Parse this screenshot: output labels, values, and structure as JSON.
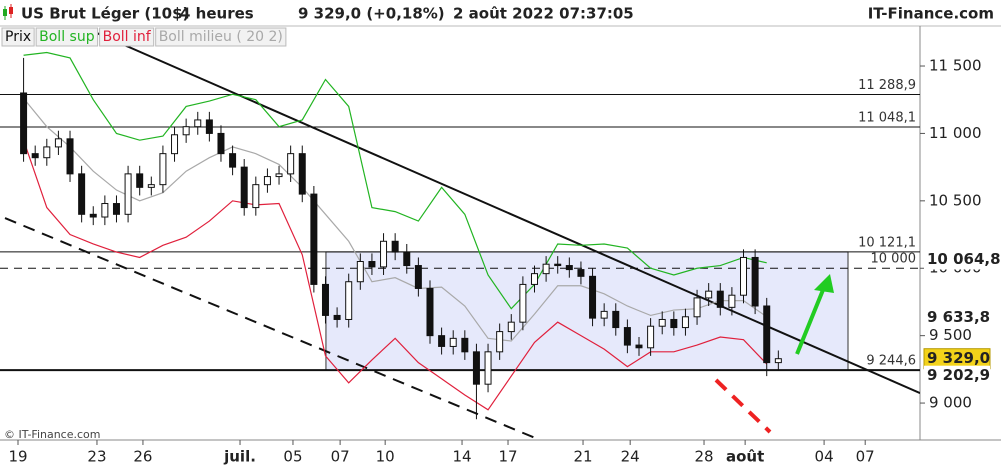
{
  "chart_data": {
    "type": "candlestick",
    "title": "US Brut Léger (10$)",
    "timeframe": "4 heures",
    "last_price": "9 329,0 (+0,18%)",
    "datetime": "2 août 2022 07:37:05",
    "brand": "IT-Finance.com",
    "footer": "© IT-Finance.com",
    "xlim": [
      -0.8,
      38.6
    ],
    "ylim": [
      8726,
      11782
    ],
    "xticks": [
      {
        "value": -0.24,
        "label": "19"
      },
      {
        "value": 3.16,
        "label": "23"
      },
      {
        "value": 5.14,
        "label": "26"
      },
      {
        "value": 9.32,
        "label": "juil."
      },
      {
        "value": 11.6,
        "label": "05"
      },
      {
        "value": 13.63,
        "label": "07"
      },
      {
        "value": 15.57,
        "label": "10"
      },
      {
        "value": 18.88,
        "label": "14"
      },
      {
        "value": 20.86,
        "label": "17"
      },
      {
        "value": 24.09,
        "label": "21"
      },
      {
        "value": 26.12,
        "label": "24"
      },
      {
        "value": 29.3,
        "label": "28"
      },
      {
        "value": 31.07,
        "label": "août"
      },
      {
        "value": 34.47,
        "label": "04"
      },
      {
        "value": 36.24,
        "label": "07"
      }
    ],
    "yticks": [
      {
        "value": 9000,
        "label": "9 000"
      },
      {
        "value": 9500,
        "label": "9 500"
      },
      {
        "value": 10000,
        "label": "10 000"
      },
      {
        "value": 10500,
        "label": "10 500"
      },
      {
        "value": 11000,
        "label": "11 000"
      },
      {
        "value": 11500,
        "label": "11 500"
      }
    ],
    "candles": {
      "name": "Prix",
      "x": [
        0,
        0.5,
        1,
        1.5,
        2,
        2.5,
        3,
        3.5,
        4,
        4.5,
        5,
        5.5,
        6,
        6.5,
        7,
        7.5,
        8,
        8.5,
        9,
        9.5,
        10,
        10.5,
        11,
        11.5,
        12,
        12.5,
        13,
        13.5,
        14,
        14.5,
        15,
        15.5,
        16,
        16.5,
        17,
        17.5,
        18,
        18.5,
        19,
        19.5,
        20,
        20.5,
        21,
        21.5,
        22,
        22.5,
        23,
        23.5,
        24,
        24.5,
        25,
        25.5,
        26,
        26.5,
        27,
        27.5,
        28,
        28.5,
        29,
        29.5,
        30,
        30.5,
        31,
        31.5,
        32,
        32.5
      ],
      "open": [
        11300,
        10850,
        10820,
        10900,
        10960,
        10700,
        10400,
        10380,
        10480,
        10400,
        10700,
        10600,
        10620,
        10850,
        10990,
        11050,
        11100,
        11000,
        10850,
        10750,
        10450,
        10620,
        10680,
        10700,
        10850,
        10550,
        9880,
        9650,
        9620,
        9900,
        10050,
        10010,
        10200,
        10120,
        10020,
        9850,
        9500,
        9420,
        9480,
        9380,
        9140,
        9380,
        9530,
        9600,
        9880,
        9960,
        10030,
        10020,
        9990,
        9940,
        9630,
        9680,
        9560,
        9430,
        9410,
        9570,
        9620,
        9560,
        9640,
        9780,
        9830,
        9710,
        9800,
        10080,
        9720,
        9300
      ],
      "high": [
        11560,
        10910,
        10960,
        11020,
        11020,
        10760,
        10460,
        10540,
        10540,
        10760,
        10760,
        10680,
        10910,
        11050,
        11110,
        11160,
        11160,
        11060,
        10910,
        10810,
        10680,
        10740,
        10760,
        10910,
        10910,
        10610,
        9940,
        9710,
        9960,
        10110,
        10110,
        10260,
        10260,
        10180,
        10080,
        9910,
        9560,
        9540,
        9540,
        9440,
        9440,
        9590,
        9660,
        9940,
        10020,
        10090,
        10090,
        10080,
        10050,
        10000,
        9740,
        9740,
        9620,
        9490,
        9630,
        9680,
        9680,
        9700,
        9840,
        9890,
        9890,
        9860,
        10140,
        10140,
        9780,
        9390
      ],
      "low": [
        10790,
        10760,
        10760,
        10840,
        10640,
        10340,
        10320,
        10320,
        10340,
        10340,
        10540,
        10540,
        10560,
        10790,
        10930,
        10990,
        10940,
        10790,
        10690,
        10390,
        10390,
        10560,
        10620,
        10640,
        10490,
        9820,
        9590,
        9560,
        9560,
        9840,
        9950,
        9950,
        10060,
        9960,
        9790,
        9440,
        9360,
        9360,
        9320,
        8880,
        9080,
        9320,
        9470,
        9540,
        9820,
        9900,
        9960,
        9930,
        9880,
        9570,
        9570,
        9500,
        9370,
        9350,
        9350,
        9510,
        9500,
        9500,
        9580,
        9720,
        9650,
        9650,
        9740,
        9660,
        9200,
        9240
      ],
      "close": [
        10850,
        10820,
        10900,
        10960,
        10700,
        10400,
        10380,
        10480,
        10400,
        10700,
        10600,
        10620,
        10850,
        10990,
        11050,
        11100,
        11000,
        10850,
        10750,
        10450,
        10620,
        10680,
        10700,
        10850,
        10550,
        9880,
        9650,
        9620,
        9900,
        10050,
        10010,
        10200,
        10120,
        10020,
        9850,
        9500,
        9420,
        9480,
        9380,
        9140,
        9380,
        9530,
        9600,
        9880,
        9960,
        10030,
        10020,
        9990,
        9940,
        9630,
        9680,
        9560,
        9430,
        9410,
        9570,
        9620,
        9560,
        9640,
        9780,
        9830,
        9710,
        9800,
        10080,
        9720,
        9300,
        9329
      ]
    },
    "series": [
      {
        "name": "Boll sup",
        "color": "#22b422",
        "x": [
          0,
          1,
          2,
          3,
          4,
          5,
          6,
          7,
          8,
          9,
          10,
          11,
          12,
          13,
          14,
          15,
          16,
          17,
          18,
          19,
          20,
          21,
          22,
          23,
          24,
          25,
          26,
          27,
          28,
          29,
          30,
          31,
          32
        ],
        "values": [
          11580,
          11600,
          11560,
          11250,
          11000,
          10950,
          10980,
          11200,
          11240,
          11290,
          11250,
          11050,
          11100,
          11400,
          11200,
          10450,
          10420,
          10350,
          10600,
          10400,
          9950,
          9700,
          9880,
          10180,
          10170,
          10180,
          10150,
          10000,
          9950,
          10000,
          10020,
          10080,
          10040
        ]
      },
      {
        "name": "Boll inf",
        "color": "#e0203c",
        "x": [
          0,
          1,
          2,
          3,
          4,
          5,
          6,
          7,
          8,
          9,
          10,
          11,
          12,
          13,
          14,
          15,
          16,
          17,
          18,
          19,
          20,
          21,
          22,
          23,
          24,
          25,
          26,
          27,
          28,
          29,
          30,
          31,
          32
        ],
        "values": [
          10950,
          10450,
          10250,
          10180,
          10120,
          10080,
          10170,
          10230,
          10350,
          10500,
          10470,
          10480,
          10100,
          9350,
          9150,
          9320,
          9480,
          9300,
          9180,
          9060,
          8950,
          9200,
          9450,
          9600,
          9500,
          9400,
          9270,
          9380,
          9380,
          9430,
          9490,
          9470,
          9290
        ]
      },
      {
        "name": "Boll milieu ( 20 2)",
        "color": "#a9a9a9",
        "x": [
          0,
          1,
          2,
          3,
          4,
          5,
          6,
          7,
          8,
          9,
          10,
          11,
          12,
          13,
          14,
          15,
          16,
          17,
          18,
          19,
          20,
          21,
          22,
          23,
          24,
          25,
          26,
          27,
          28,
          29,
          30,
          31,
          32
        ],
        "values": [
          11260,
          11050,
          10900,
          10720,
          10580,
          10500,
          10560,
          10720,
          10820,
          10900,
          10850,
          10770,
          10600,
          10400,
          10200,
          9900,
          9930,
          9850,
          9860,
          9720,
          9480,
          9460,
          9660,
          9870,
          9870,
          9810,
          9720,
          9650,
          9690,
          9700,
          9760,
          9760,
          9640
        ]
      }
    ],
    "levels": [
      {
        "value": 11288.9,
        "label": "11 288,9",
        "style": "solid"
      },
      {
        "value": 11048.1,
        "label": "11 048,1",
        "style": "solid"
      },
      {
        "value": 10121.1,
        "label": "10 121,1",
        "style": "solid"
      },
      {
        "value": 10000,
        "label": "10 000",
        "style": "dashed"
      },
      {
        "value": 9244.6,
        "label": "9 244,6",
        "style": "bold"
      }
    ],
    "rectangle": {
      "x": [
        13.02,
        35.5
      ],
      "y": [
        9244.6,
        10121.1
      ],
      "color": "#e6e9fb"
    },
    "trendlines": [
      {
        "x": [
          2.86,
          38.6
        ],
        "y": [
          11767,
          9074
        ],
        "style": "solid"
      },
      {
        "x": [
          -0.8,
          22.24
        ],
        "y": [
          10372,
          8726
        ],
        "style": "dashed"
      }
    ],
    "price_tags": [
      {
        "value": 10064.8,
        "label": "10 064,8",
        "color": "#1aa81a",
        "background": "#ffffff"
      },
      {
        "value": 9633.8,
        "label": "9 633,8",
        "color": "#999999",
        "background": "#ffffff"
      },
      {
        "value": 9329.0,
        "label": "9 329,0",
        "color": "#111111",
        "background": "#f3d21a"
      },
      {
        "value": 9202.9,
        "label": "9 202,9",
        "color": "#e0203c",
        "background": "#ffffff"
      }
    ]
  }
}
